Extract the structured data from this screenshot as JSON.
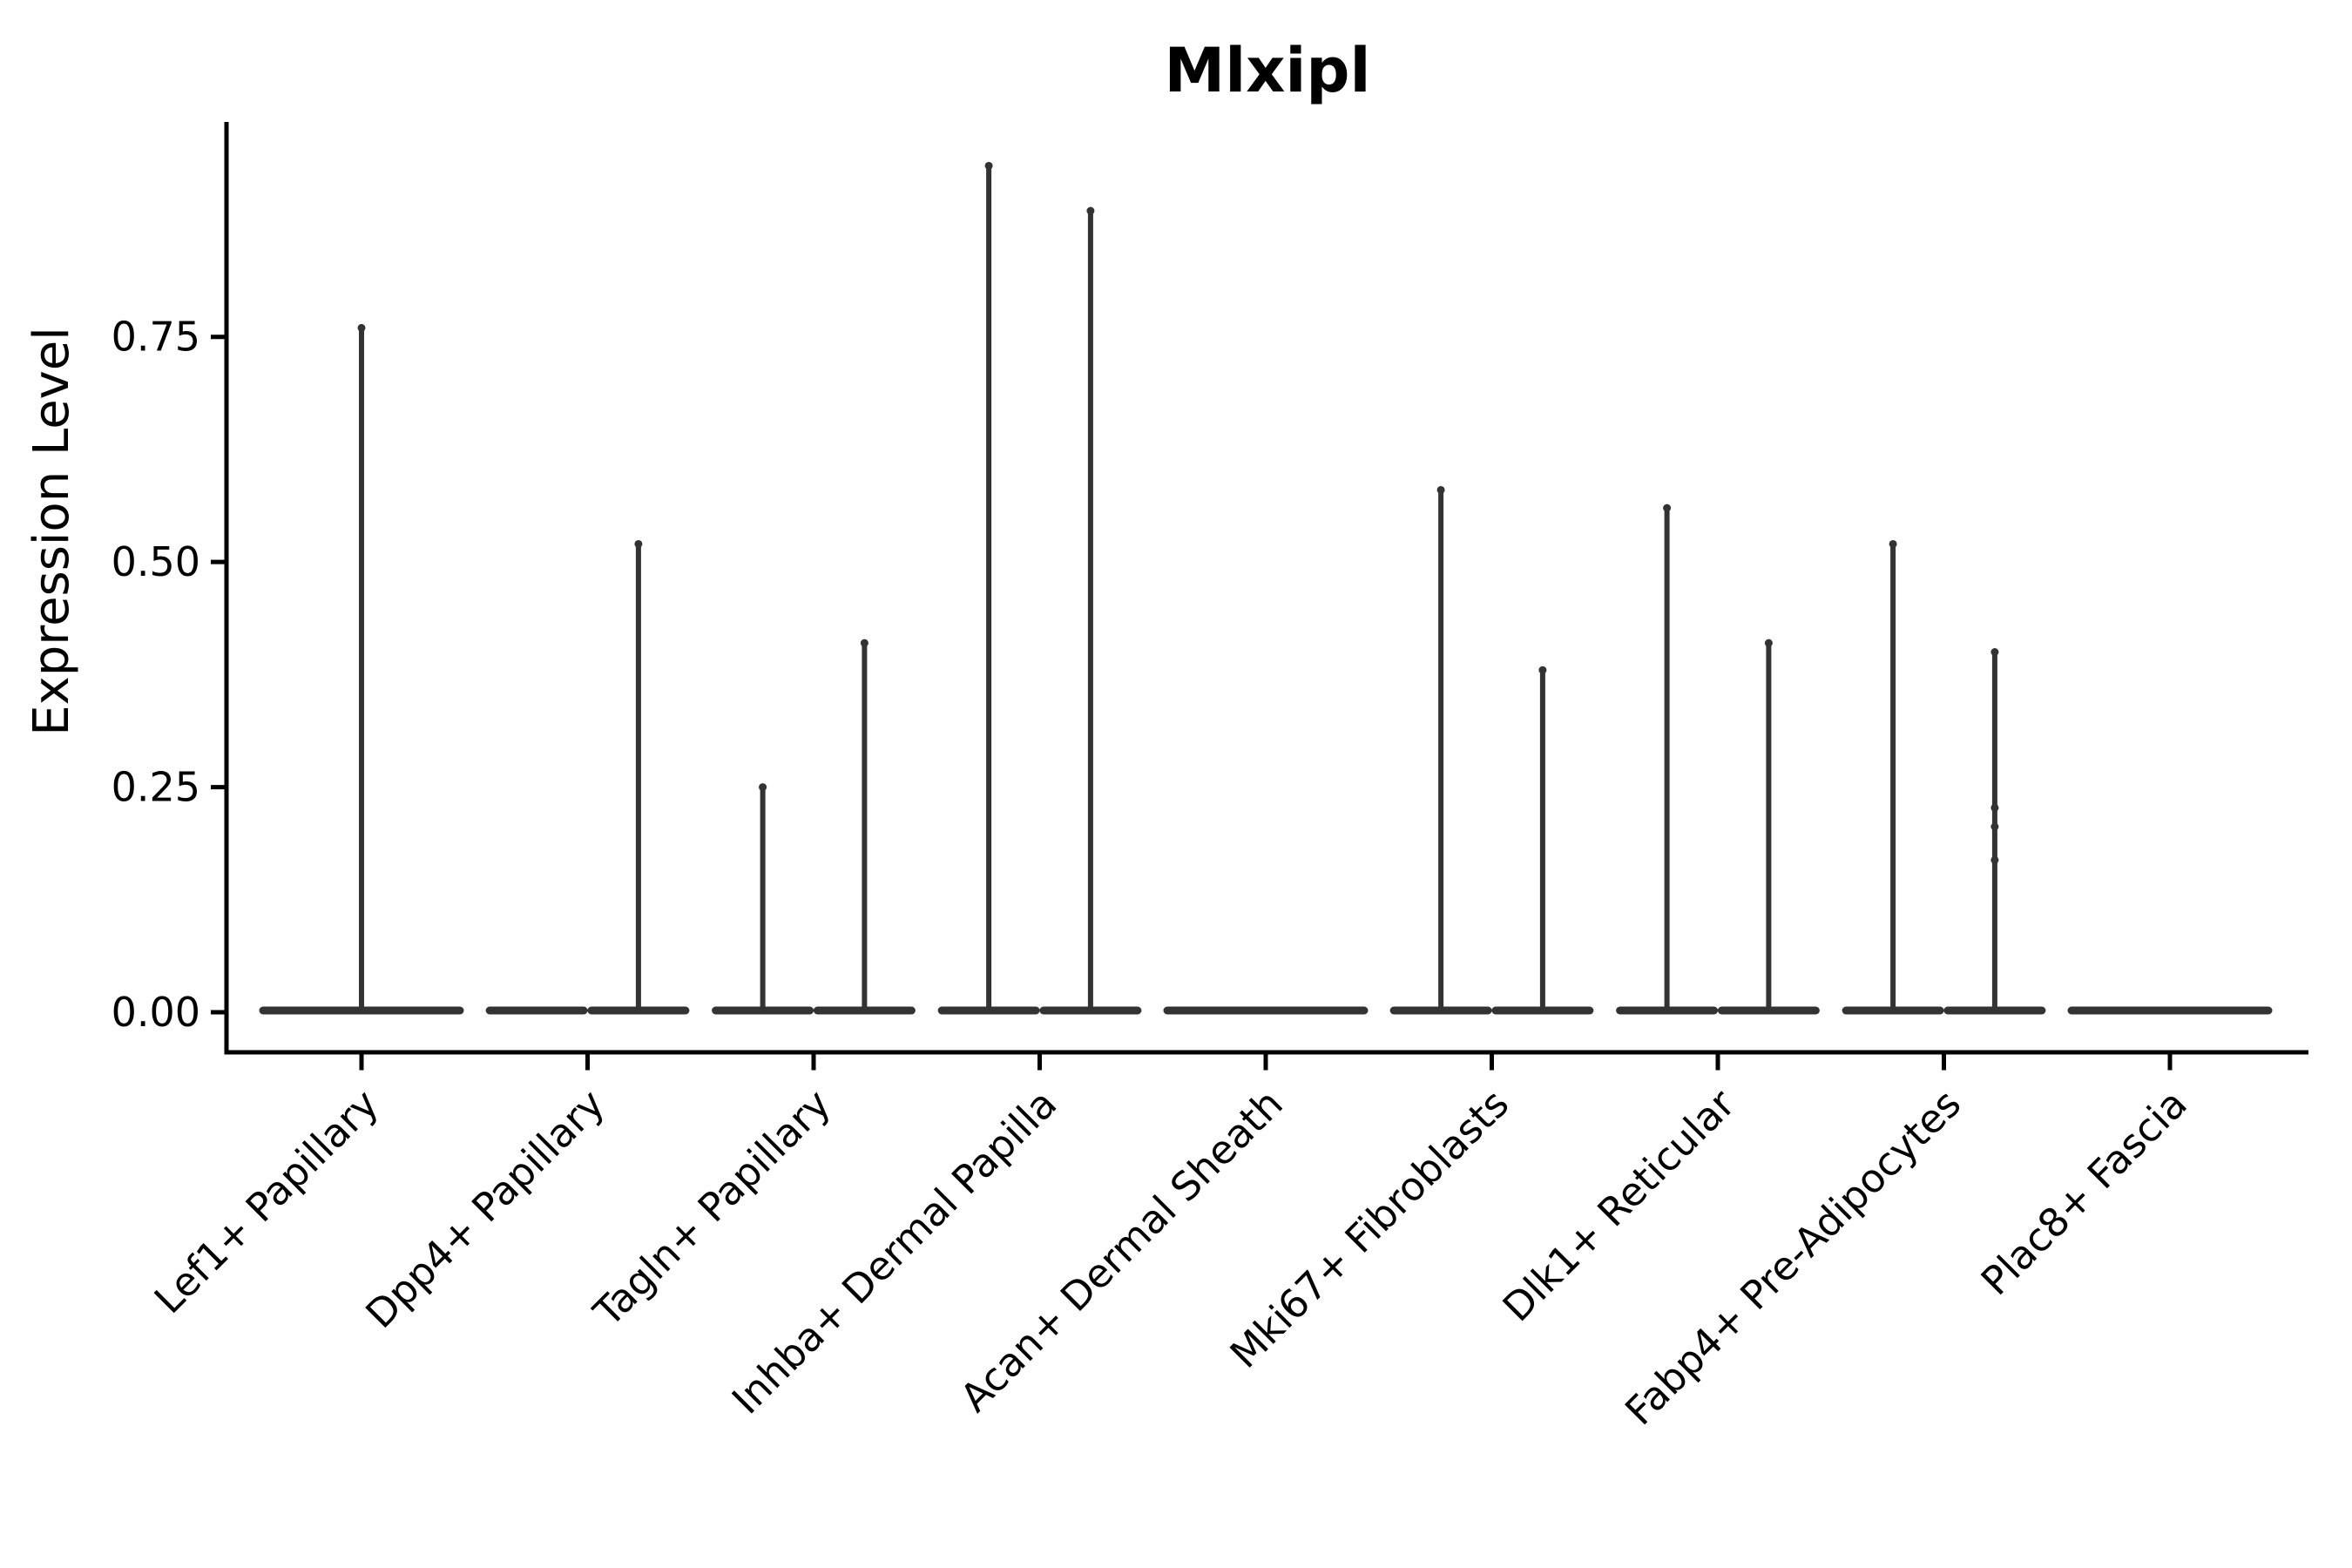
{
  "chart_data": {
    "type": "violin",
    "title": "Mlxipl",
    "ylabel": "Expression Level",
    "xlabel": "",
    "legend": "none",
    "grid": false,
    "background_color": "#ffffff",
    "axis_color": "#000000",
    "violin_color": "#333333",
    "point_color": "#333333",
    "y_axis": {
      "ticks": [
        {
          "label": "0.00",
          "value": 0.0
        },
        {
          "label": "0.25",
          "value": 0.25
        },
        {
          "label": "0.50",
          "value": 0.5
        },
        {
          "label": "0.75",
          "value": 0.75
        }
      ],
      "range_shown": [
        0.0,
        0.99
      ]
    },
    "categories": [
      {
        "label": "Lef1+ Papillary",
        "violins": [
          {
            "position": "center",
            "max_expression": 0.76
          }
        ]
      },
      {
        "label": "Dpp4+ Papillary",
        "violins": [
          {
            "position": "left",
            "max_expression": 0
          },
          {
            "position": "right",
            "max_expression": 0.52
          }
        ]
      },
      {
        "label": "Tagln+ Papillary",
        "violins": [
          {
            "position": "left",
            "max_expression": 0.25
          },
          {
            "position": "right",
            "max_expression": 0.41
          }
        ]
      },
      {
        "label": "Inhba+ Dermal Papilla",
        "violins": [
          {
            "position": "left",
            "max_expression": 0.94
          },
          {
            "position": "right",
            "max_expression": 0.89
          }
        ]
      },
      {
        "label": "Acan+ Dermal Sheath",
        "violins": [
          {
            "position": "center",
            "max_expression": 0
          }
        ]
      },
      {
        "label": "Mki67+ Fibroblasts",
        "violins": [
          {
            "position": "left",
            "max_expression": 0.58
          },
          {
            "position": "right",
            "max_expression": 0.38
          }
        ]
      },
      {
        "label": "Dlk1+ Reticular",
        "violins": [
          {
            "position": "left",
            "max_expression": 0.56
          },
          {
            "position": "right",
            "max_expression": 0.41
          }
        ]
      },
      {
        "label": "Fabp4+ Pre-Adipocytes",
        "violins": [
          {
            "position": "left",
            "max_expression": 0.52
          },
          {
            "position": "right",
            "max_expression": 0.4,
            "extra_points": [
              0.227,
              0.206,
              0.169
            ]
          }
        ]
      },
      {
        "label": "Plac8+ Fascia",
        "violins": [
          {
            "position": "center",
            "max_expression": 0
          }
        ]
      }
    ]
  }
}
